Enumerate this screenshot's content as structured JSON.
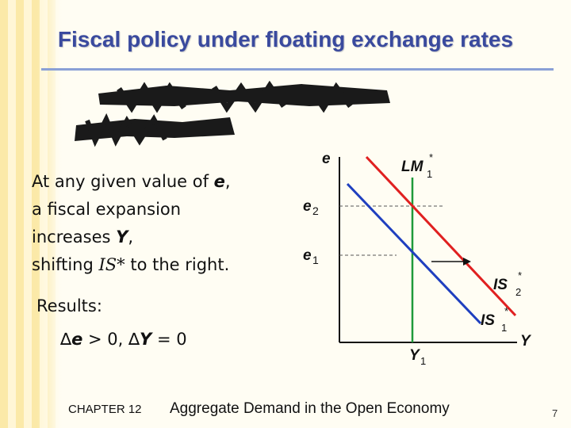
{
  "title": "Fiscal policy under floating exchange rates",
  "bullets": {
    "line1_pre": "At any given value of ",
    "line1_var": "e",
    "line1_post": ",",
    "line2": "a fiscal expansion",
    "line3_pre": "increases ",
    "line3_var": "Y",
    "line3_post": ",",
    "line4_pre": "shifting ",
    "line4_var": "IS*",
    "line4_post": " to the right."
  },
  "results": {
    "label": "Results:",
    "delta1": "∆",
    "var1": "e",
    "rel1": " > 0,  ",
    "delta2": "∆",
    "var2": "Y",
    "rel2": " = 0"
  },
  "footer": {
    "chapter": "CHAPTER 12",
    "subject": "Aggregate Demand in the Open Economy",
    "page": "7"
  },
  "diagram": {
    "y_axis_label": "e",
    "x_axis_label": "Y",
    "lm_label": "LM",
    "lm_sub": "1",
    "lm_sup": "*",
    "is2_label": "IS",
    "is2_sub": "2",
    "is2_sup": "*",
    "is1_label": "IS",
    "is1_sub": "1",
    "is1_sup": "*",
    "e2_label": "e",
    "e2_sub": "2",
    "e1_label": "e",
    "e1_sub": "1",
    "y1_label": "Y",
    "y1_sub": "1",
    "colors": {
      "lm": "#e02020",
      "is": "#1f3fbf",
      "axis": "#111111",
      "title": "#3a4a9e"
    }
  }
}
